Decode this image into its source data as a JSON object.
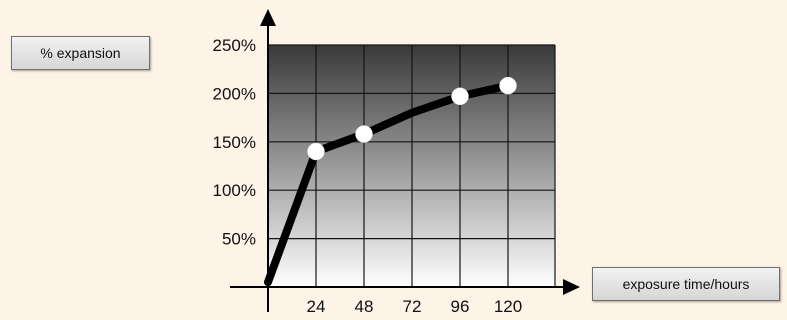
{
  "chart_data": {
    "type": "line",
    "ylabel": "% expansion",
    "xlabel": "exposure time/hours",
    "x_ticks": [
      "24",
      "48",
      "72",
      "96",
      "120"
    ],
    "y_ticks": [
      "50%",
      "100%",
      "150%",
      "200%",
      "250%"
    ],
    "xlim": [
      0,
      120
    ],
    "ylim": [
      0,
      250
    ],
    "grid": true,
    "series": [
      {
        "points": [
          {
            "x": 0,
            "y": 5
          },
          {
            "x": 24,
            "y": 140
          },
          {
            "x": 48,
            "y": 158
          },
          {
            "x": 72,
            "y": 180
          },
          {
            "x": 96,
            "y": 197
          },
          {
            "x": 120,
            "y": 208
          }
        ],
        "markers": [
          {
            "x": 24,
            "y": 140
          },
          {
            "x": 48,
            "y": 158
          },
          {
            "x": 96,
            "y": 197
          },
          {
            "x": 120,
            "y": 208
          }
        ]
      }
    ],
    "colors": {
      "line": "#000000",
      "marker": "#ffffff",
      "plot_top": "#3a3a3a",
      "plot_bottom": "#ffffff",
      "grid": "#151515"
    }
  }
}
